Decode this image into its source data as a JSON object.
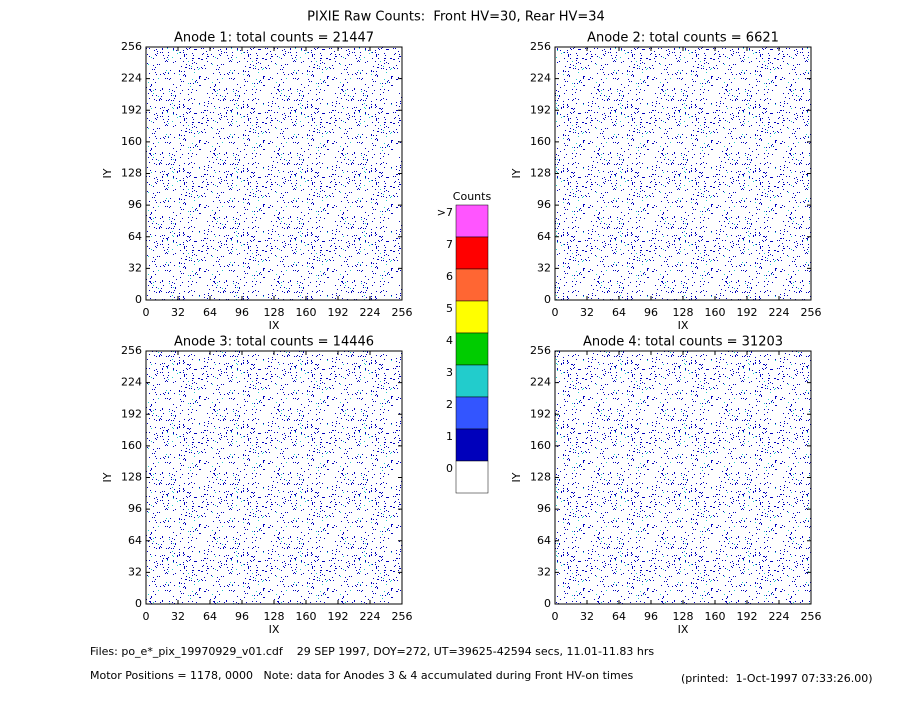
{
  "title": "PIXIE Raw Counts:  Front HV=30, Rear HV=34",
  "chart_data": [
    {
      "type": "heatmap",
      "title": "Anode 1: total counts = 21447",
      "xlabel": "IX",
      "ylabel": "IY",
      "xlim": [
        0,
        256
      ],
      "ylim": [
        0,
        256
      ],
      "xticks": [
        0,
        32,
        64,
        96,
        128,
        160,
        192,
        224,
        256
      ],
      "yticks": [
        0,
        32,
        64,
        96,
        128,
        160,
        192,
        224,
        256
      ]
    },
    {
      "type": "heatmap",
      "title": "Anode 2: total counts = 6621",
      "xlabel": "IX",
      "ylabel": "IY",
      "xlim": [
        0,
        256
      ],
      "ylim": [
        0,
        256
      ],
      "xticks": [
        0,
        32,
        64,
        96,
        128,
        160,
        192,
        224,
        256
      ],
      "yticks": [
        0,
        32,
        64,
        96,
        128,
        160,
        192,
        224,
        256
      ]
    },
    {
      "type": "heatmap",
      "title": "Anode 3: total counts = 14446",
      "xlabel": "IX",
      "ylabel": "IY",
      "xlim": [
        0,
        256
      ],
      "ylim": [
        0,
        256
      ],
      "xticks": [
        0,
        32,
        64,
        96,
        128,
        160,
        192,
        224,
        256
      ],
      "yticks": [
        0,
        32,
        64,
        96,
        128,
        160,
        192,
        224,
        256
      ]
    },
    {
      "type": "heatmap",
      "title": "Anode 4: total counts = 31203",
      "xlabel": "IX",
      "ylabel": "IY",
      "xlim": [
        0,
        256
      ],
      "ylim": [
        0,
        256
      ],
      "xticks": [
        0,
        32,
        64,
        96,
        128,
        160,
        192,
        224,
        256
      ],
      "yticks": [
        0,
        32,
        64,
        96,
        128,
        160,
        192,
        224,
        256
      ]
    }
  ],
  "colorbar": {
    "title": "Counts",
    "labels": [
      ">7",
      "7",
      "6",
      "5",
      "4",
      "3",
      "2",
      "1",
      "0"
    ],
    "colors": [
      "#ff55ff",
      "#ff0000",
      "#ff6633",
      "#ffff00",
      "#00cc00",
      "#22cccc",
      "#3355ff",
      "#0000bb",
      "#ffffff"
    ]
  },
  "footer": {
    "files": "Files: po_e*_pix_19970929_v01.cdf    29 SEP 1997, DOY=272, UT=39625-42594 secs, 11.01-11.83 hrs",
    "motor": "Motor Positions = 1178, 0000   Note: data for Anodes 3 & 4 accumulated during Front HV-on times",
    "printed": "(printed:  1-Oct-1997 07:33:26.00)"
  }
}
